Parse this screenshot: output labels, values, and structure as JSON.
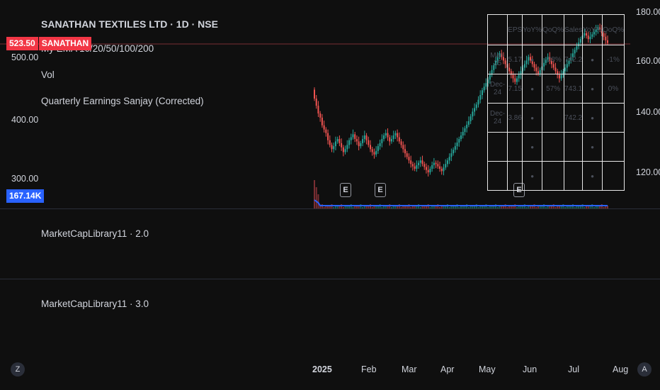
{
  "header": {
    "title": "SANATHAN TEXTILES LTD · 1D · NSE",
    "indicator_ema": "My EMA 10/20/50/100/200",
    "indicator_vol": "Vol",
    "indicator_earnings": "Quarterly Earnings Sanjay (Corrected)"
  },
  "price_tag": {
    "price": "523.50",
    "symbol": "SANATHAN",
    "color": "#f23645"
  },
  "volume_tag": {
    "value": "167.14K",
    "color": "#2962ff"
  },
  "left_axis": [
    "500.00",
    "400.00",
    "300.00"
  ],
  "right_axis": [
    "180.00",
    "160.00",
    "140.00",
    "120.00"
  ],
  "panes": {
    "pane2_label": "MarketCapLibrary11 · 2.0",
    "pane3_label": "MarketCapLibrary11 · 3.0"
  },
  "x_axis": [
    "2025",
    "Feb",
    "Mar",
    "Apr",
    "May",
    "Jun",
    "Jul",
    "Aug"
  ],
  "earnings_badges": [
    "E",
    "E",
    "E"
  ],
  "buttons": {
    "left": "Z",
    "right": "A"
  },
  "earnings_table": {
    "headers": [
      "",
      "EPS",
      "YoY%",
      "QoQ%",
      "Sales",
      "YoY%",
      "QoQ%"
    ],
    "rows": [
      [
        "Mar-25",
        "5.17",
        "•",
        "-28%",
        "742.2",
        "•",
        "-1%"
      ],
      [
        "Dec-24",
        "7.15",
        "•",
        "57%",
        "743.1",
        "•",
        "0%"
      ],
      [
        "Dec-24",
        "3.86",
        "•",
        "",
        "742.2",
        "•",
        ""
      ],
      [
        "",
        "",
        "•",
        "",
        "",
        "•",
        ""
      ],
      [
        "",
        "",
        "•",
        "",
        "",
        "•",
        ""
      ]
    ]
  },
  "chart_data": {
    "type": "candlestick",
    "up_color": "#26a69a",
    "down_color": "#ef5350",
    "closes": [
      430,
      418,
      405,
      398,
      385,
      378,
      372,
      360,
      352,
      345,
      350,
      358,
      362,
      355,
      348,
      340,
      345,
      352,
      360,
      365,
      370,
      362,
      358,
      350,
      355,
      362,
      368,
      360,
      352,
      345,
      340,
      336,
      342,
      350,
      355,
      362,
      368,
      372,
      365,
      358,
      362,
      368,
      372,
      365,
      358,
      352,
      345,
      338,
      332,
      326,
      320,
      316,
      312,
      318,
      322,
      326,
      320,
      315,
      310,
      306,
      312,
      318,
      322,
      320,
      316,
      312,
      308,
      314,
      320,
      326,
      332,
      338,
      344,
      350,
      356,
      362,
      368,
      374,
      380,
      386,
      392,
      400,
      408,
      414,
      420,
      428,
      436,
      444,
      450,
      456,
      462,
      470,
      478,
      486,
      494,
      500,
      506,
      500,
      494,
      488,
      482,
      476,
      470,
      464,
      458,
      464,
      470,
      476,
      482,
      488,
      494,
      500,
      494,
      488,
      482,
      476,
      472,
      478,
      484,
      490,
      496,
      500,
      494,
      488,
      482,
      476,
      470,
      464,
      470,
      476,
      482,
      488,
      494,
      500,
      506,
      512,
      518,
      524,
      530,
      536,
      540,
      536,
      530,
      534,
      538,
      542,
      546,
      550,
      546,
      540,
      534,
      528,
      523.5
    ]
  }
}
